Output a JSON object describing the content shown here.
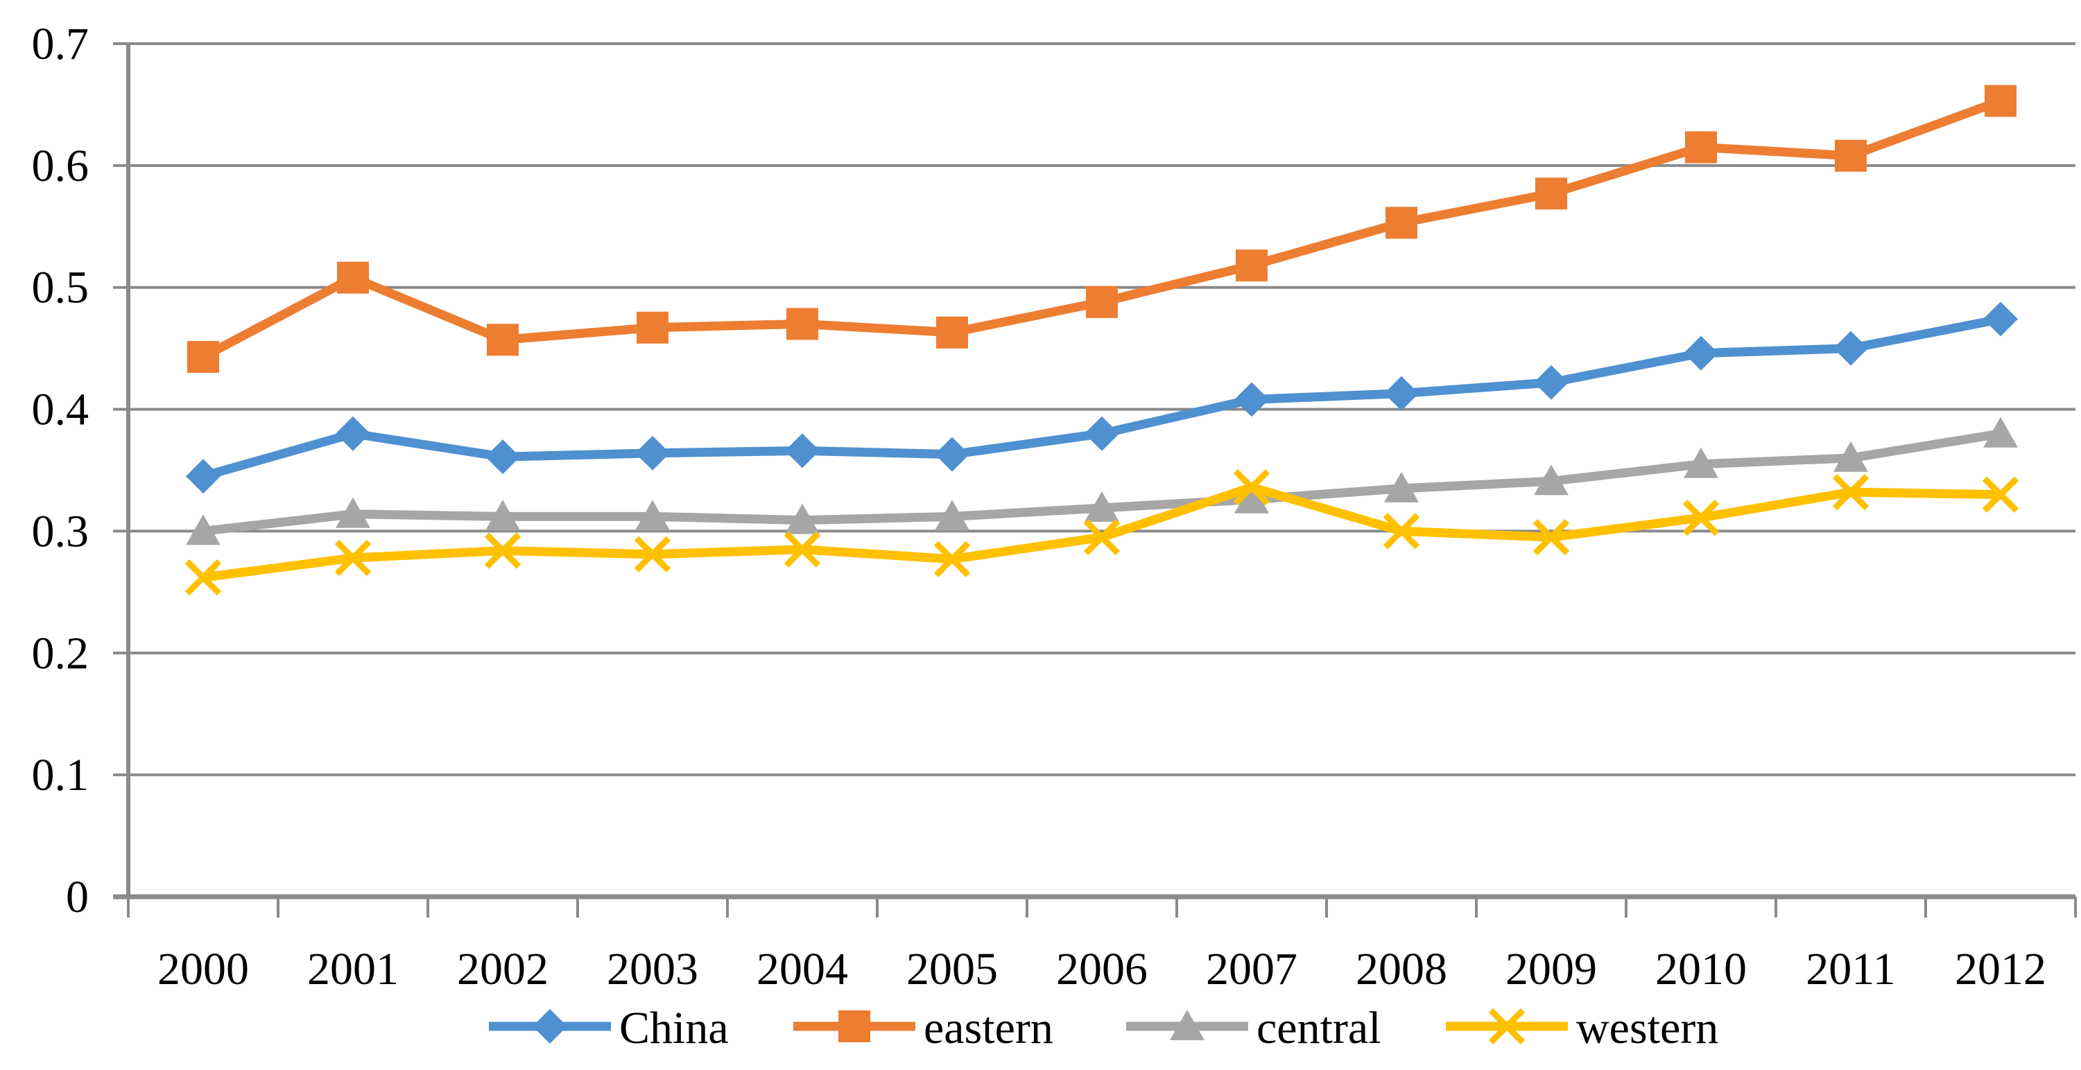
{
  "chart_data": {
    "type": "line",
    "title": "",
    "xlabel": "",
    "ylabel": "",
    "categories": [
      "2000",
      "2001",
      "2002",
      "2003",
      "2004",
      "2005",
      "2006",
      "2007",
      "2008",
      "2009",
      "2010",
      "2011",
      "2012"
    ],
    "series": [
      {
        "name": "China",
        "color": "#4F90D1",
        "marker": "diamond",
        "values": [
          0.345,
          0.38,
          0.361,
          0.364,
          0.366,
          0.363,
          0.38,
          0.408,
          0.413,
          0.422,
          0.446,
          0.45,
          0.474
        ]
      },
      {
        "name": "eastern",
        "color": "#ED7D31",
        "marker": "square",
        "values": [
          0.443,
          0.508,
          0.457,
          0.467,
          0.47,
          0.463,
          0.488,
          0.518,
          0.553,
          0.577,
          0.615,
          0.608,
          0.653
        ]
      },
      {
        "name": "central",
        "color": "#A6A6A6",
        "marker": "triangle",
        "values": [
          0.3,
          0.314,
          0.312,
          0.312,
          0.309,
          0.312,
          0.319,
          0.326,
          0.335,
          0.341,
          0.355,
          0.36,
          0.38
        ]
      },
      {
        "name": "western",
        "color": "#FFC000",
        "marker": "x",
        "values": [
          0.262,
          0.278,
          0.284,
          0.281,
          0.285,
          0.277,
          0.295,
          0.336,
          0.3,
          0.295,
          0.311,
          0.332,
          0.33
        ]
      }
    ],
    "ylim": [
      0,
      0.7
    ],
    "ytick_step": 0.1,
    "yticks": [
      "0",
      "0.1",
      "0.2",
      "0.3",
      "0.4",
      "0.5",
      "0.6",
      "0.7"
    ],
    "grid": true,
    "legend_position": "bottom",
    "legend_entries": [
      "China",
      "eastern",
      "central",
      "western"
    ],
    "colors": {
      "gridline": "#8A8A8A",
      "axis": "#8A8A8A",
      "text": "#000000",
      "background": "#FFFFFF"
    }
  }
}
